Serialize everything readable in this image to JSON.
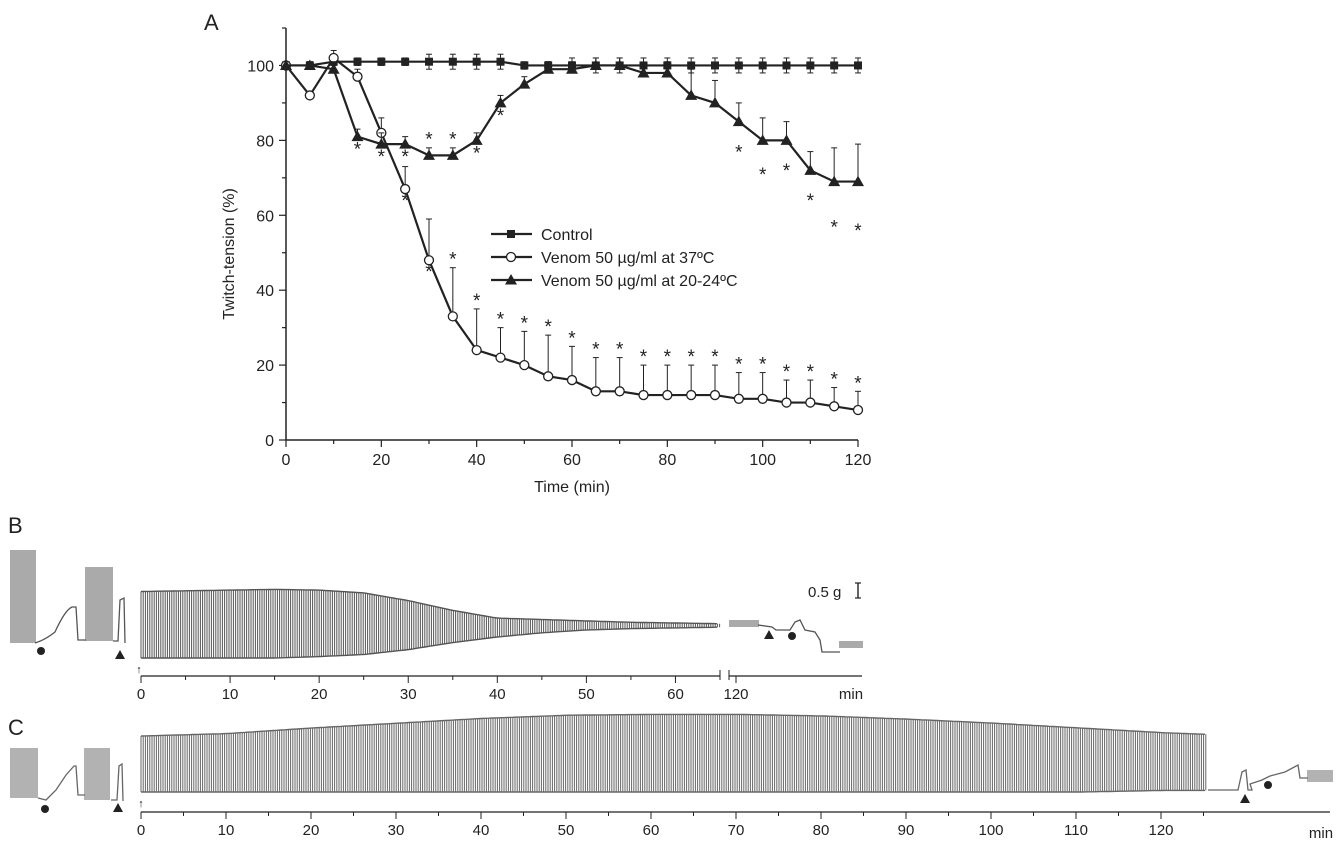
{
  "panels": {
    "a": "A",
    "b": "B",
    "c": "C"
  },
  "chart_data": [
    {
      "type": "line",
      "panel": "A",
      "xlabel": "Time (min)",
      "ylabel": "Twitch-tension (%)",
      "xlim": [
        0,
        120
      ],
      "ylim": [
        0,
        110
      ],
      "xticks": [
        "0",
        "20",
        "40",
        "60",
        "80",
        "100",
        "120"
      ],
      "yticks": [
        "0",
        "20",
        "40",
        "60",
        "80",
        "100"
      ],
      "legend_position": "center",
      "significance_mark": "*",
      "series": [
        {
          "name": "Control",
          "marker": "square",
          "x": [
            0,
            5,
            10,
            15,
            20,
            25,
            30,
            35,
            40,
            45,
            50,
            55,
            60,
            65,
            70,
            75,
            80,
            85,
            90,
            95,
            100,
            105,
            110,
            115,
            120
          ],
          "y": [
            100,
            100,
            101,
            101,
            101,
            101,
            101,
            101,
            101,
            101,
            100,
            100,
            100,
            100,
            100,
            100,
            100,
            100,
            100,
            100,
            100,
            100,
            100,
            100,
            100
          ],
          "err": [
            0,
            1,
            1,
            1,
            1,
            1,
            2,
            2,
            2,
            2,
            1,
            1,
            2,
            2,
            2,
            2,
            2,
            2,
            2,
            2,
            2,
            2,
            2,
            2,
            2
          ],
          "sig": []
        },
        {
          "name": "Venom 50 µg/ml at 37ºC",
          "marker": "circle",
          "x": [
            0,
            5,
            10,
            15,
            20,
            25,
            30,
            35,
            40,
            45,
            50,
            55,
            60,
            65,
            70,
            75,
            80,
            85,
            90,
            95,
            100,
            105,
            110,
            115,
            120
          ],
          "y": [
            100,
            92,
            102,
            97,
            82,
            67,
            48,
            33,
            24,
            22,
            20,
            17,
            16,
            13,
            13,
            12,
            12,
            12,
            12,
            11,
            11,
            10,
            10,
            9,
            8
          ],
          "err": [
            0,
            0,
            2,
            2,
            4,
            6,
            11,
            13,
            11,
            8,
            9,
            11,
            9,
            9,
            9,
            8,
            8,
            8,
            8,
            7,
            7,
            6,
            6,
            5,
            5
          ],
          "sig": [
            25,
            30,
            35,
            40,
            45,
            50,
            55,
            60,
            65,
            70,
            75,
            80,
            85,
            90,
            95,
            100,
            105,
            110,
            115,
            120
          ]
        },
        {
          "name": "Venom 50 µg/ml at 20-24ºC",
          "marker": "triangle",
          "x": [
            0,
            5,
            10,
            15,
            20,
            25,
            30,
            35,
            40,
            45,
            50,
            55,
            60,
            65,
            70,
            75,
            80,
            85,
            90,
            95,
            100,
            105,
            110,
            115,
            120
          ],
          "y": [
            100,
            100,
            99,
            81,
            79,
            79,
            76,
            76,
            80,
            90,
            95,
            99,
            99,
            100,
            100,
            98,
            98,
            92,
            90,
            85,
            80,
            80,
            72,
            69,
            69
          ],
          "err": [
            0,
            1,
            2,
            2,
            3,
            2,
            2,
            2,
            2,
            2,
            2,
            2,
            2,
            2,
            2,
            2,
            3,
            7,
            6,
            5,
            6,
            5,
            5,
            9,
            10
          ],
          "sig": [
            15,
            20,
            25,
            30,
            35,
            40,
            45,
            95,
            100,
            105,
            110,
            115,
            120
          ]
        }
      ]
    },
    {
      "type": "trace",
      "panel": "B",
      "scale_label": "0.5 g",
      "time_ticks": [
        "0",
        "10",
        "20",
        "30",
        "40",
        "50",
        "60"
      ],
      "time_ticks_after_break": [
        "120"
      ],
      "unit": "min",
      "envelope_top_x": [
        0,
        5,
        10,
        15,
        20,
        25,
        30,
        35,
        40,
        45,
        50,
        55,
        60,
        65
      ],
      "envelope_top_y": [
        0.95,
        0.96,
        0.97,
        0.98,
        0.97,
        0.93,
        0.82,
        0.68,
        0.57,
        0.55,
        0.53,
        0.51,
        0.5,
        0.49
      ],
      "envelope_bottom_y": [
        0.0,
        0.0,
        0.0,
        0.0,
        0.02,
        0.05,
        0.12,
        0.22,
        0.3,
        0.36,
        0.4,
        0.42,
        0.43,
        0.44
      ]
    },
    {
      "type": "trace",
      "panel": "C",
      "time_ticks": [
        "0",
        "10",
        "20",
        "30",
        "40",
        "50",
        "60",
        "70",
        "80",
        "90",
        "100",
        "110",
        "120"
      ],
      "unit": "min",
      "envelope_top_x": [
        0,
        10,
        20,
        30,
        40,
        50,
        60,
        70,
        80,
        90,
        100,
        110,
        120,
        125
      ],
      "envelope_top_y": [
        0.7,
        0.73,
        0.8,
        0.86,
        0.92,
        0.96,
        0.97,
        0.97,
        0.95,
        0.91,
        0.86,
        0.8,
        0.74,
        0.72
      ],
      "envelope_bottom_y": [
        0.0,
        0.0,
        0.0,
        0.0,
        0.0,
        0.0,
        0.0,
        0.0,
        0.0,
        0.0,
        0.0,
        0.0,
        0.02,
        0.02
      ]
    }
  ]
}
